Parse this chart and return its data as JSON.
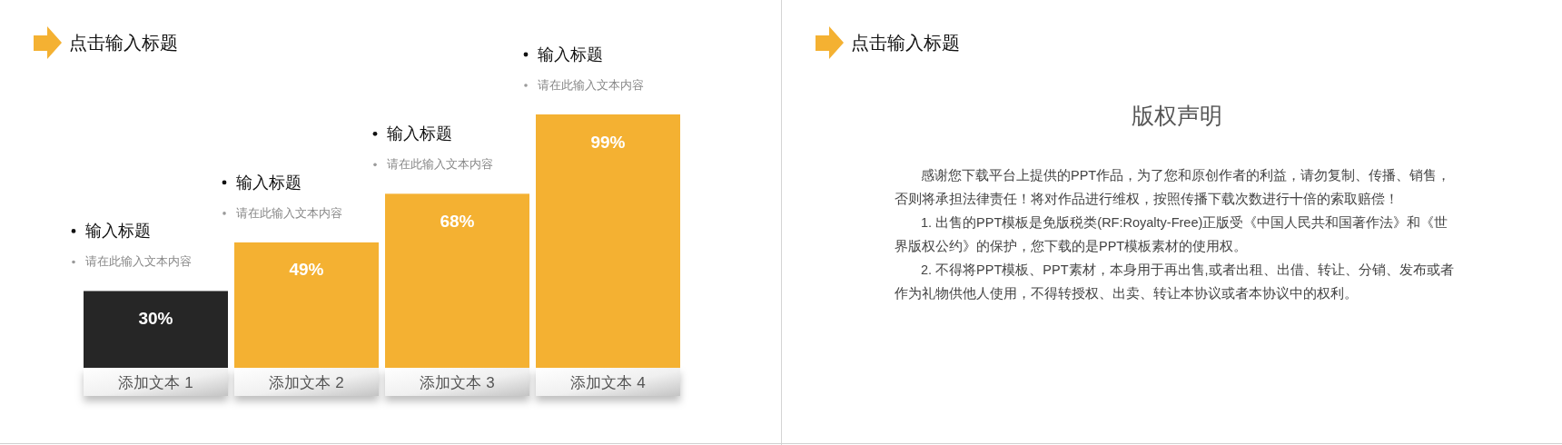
{
  "chart_data": [
    {
      "type": "bar",
      "title": "点击输入标题",
      "categories": [
        "添加文本 1",
        "添加文本 2",
        "添加文本 3",
        "添加文本 4"
      ],
      "values": [
        30,
        49,
        68,
        99
      ],
      "colors": [
        "#262626",
        "#f4b132",
        "#f4b132",
        "#f4b132"
      ],
      "value_labels": [
        "30%",
        "49%",
        "68%",
        "99%"
      ],
      "annotations": [
        "输入标题",
        "请在此输入文本内容",
        "输入标题",
        "请在此输入文本内容",
        "输入标题",
        "请在此输入文本内容",
        "输入标题",
        "请在此输入文本内容"
      ]
    },
    {
      "type": "other",
      "title": "点击输入标题",
      "subtitle": "版权声明",
      "annotations": [
        "感谢您下载平台上提供的PPT作品，为了您和原创作者的利益，请勿复制、传播、销售，否则将承担法律责任！将对作品进行维权，按照传播下载次数进行十倍的索取赔偿！",
        "1. 出售的PPT模板是免版税类(RF:Royalty-Free)正版受《中国人民共和国著作法》和《世界版权公约》的保护，您下载的是PPT模板素材的使用权。",
        "2. 不得将PPT模板、PPT素材，本身用于再出售,或者出租、出借、转让、分销、发布或者作为礼物供他人使用，不得转授权、出卖、转让本协议或者本协议中的权利。"
      ]
    }
  ]
}
